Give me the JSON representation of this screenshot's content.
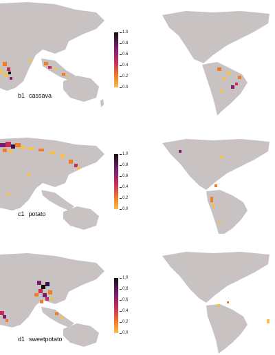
{
  "panels": [
    {
      "code": "b1",
      "crop": "cassava"
    },
    {
      "code": "c1",
      "crop": "potato"
    },
    {
      "code": "d1",
      "crop": "sweetpotato"
    }
  ],
  "colorbar": {
    "ticks": [
      "1.0",
      "0.8",
      "0.6",
      "0.4",
      "0.2",
      "0.0"
    ],
    "colors": [
      "#111111",
      "#3b0f4f",
      "#7a1d6d",
      "#c2305a",
      "#ef7d28",
      "#f3c04a"
    ]
  },
  "map_colors": {
    "land": "#c8c3c2",
    "ocean": "#ffffff"
  }
}
